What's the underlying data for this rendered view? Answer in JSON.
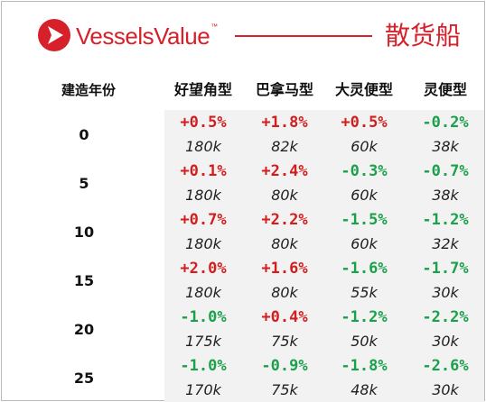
{
  "header": {
    "brand": "VesselsValue",
    "trademark": "™",
    "title": "散货船",
    "brand_color": "#d6202a"
  },
  "table": {
    "age_header": "建造年份",
    "columns": [
      "好望角型",
      "巴拿马型",
      "大灵便型",
      "灵便型"
    ],
    "rows": [
      {
        "age": "0",
        "changes": [
          "+0.5%",
          "+1.8%",
          "+0.5%",
          "-0.2%"
        ],
        "values": [
          "180k",
          "82k",
          "60k",
          "38k"
        ]
      },
      {
        "age": "5",
        "changes": [
          "+0.1%",
          "+2.4%",
          "-0.3%",
          "-0.7%"
        ],
        "values": [
          "180k",
          "80k",
          "60k",
          "38k"
        ]
      },
      {
        "age": "10",
        "changes": [
          "+0.7%",
          "+2.2%",
          "-1.5%",
          "-1.2%"
        ],
        "values": [
          "180k",
          "80k",
          "60k",
          "32k"
        ]
      },
      {
        "age": "15",
        "changes": [
          "+2.0%",
          "+1.6%",
          "-1.6%",
          "-1.7%"
        ],
        "values": [
          "180k",
          "80k",
          "55k",
          "30k"
        ]
      },
      {
        "age": "20",
        "changes": [
          "-1.0%",
          "+0.4%",
          "-1.2%",
          "-2.2%"
        ],
        "values": [
          "175k",
          "75k",
          "50k",
          "30k"
        ]
      },
      {
        "age": "25",
        "changes": [
          "-1.0%",
          "-0.9%",
          "-1.8%",
          "-2.6%"
        ],
        "values": [
          "170k",
          "75k",
          "48k",
          "30k"
        ]
      }
    ],
    "colors": {
      "positive": "#d21e1e",
      "negative": "#1aa14a",
      "shade": "#f2f2f2"
    }
  },
  "icons": {
    "logo": "vesselsvalue-logo-icon"
  }
}
